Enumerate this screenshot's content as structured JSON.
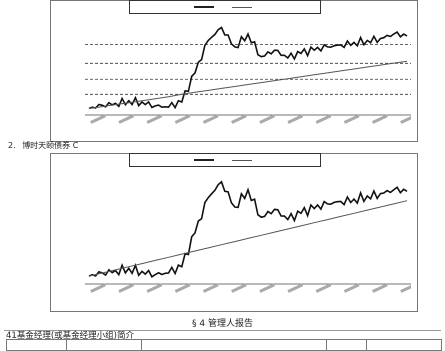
{
  "figure1": {
    "legend": [
      {
        "label": "",
        "style": "thick"
      },
      {
        "label": "",
        "style": "thin"
      }
    ],
    "y_ticks": [
      "",
      "",
      "",
      "",
      "",
      "",
      "",
      ""
    ],
    "chart_data": {
      "type": "line",
      "series": [
        {
          "values": [
            1.0,
            1.05,
            1.08,
            1.12,
            1.1,
            1.04,
            1.02,
            1.1,
            1.55,
            2.05,
            2.25,
            1.95,
            2.15,
            1.8,
            1.9,
            1.78,
            1.85,
            1.9,
            1.95,
            1.98,
            2.02,
            2.05,
            2.08,
            2.15,
            2.12
          ]
        },
        {
          "values": [
            1.0,
            1.03,
            1.06,
            1.09,
            1.12,
            1.15,
            1.18,
            1.22,
            1.25,
            1.28,
            1.31,
            1.34,
            1.37,
            1.4,
            1.43,
            1.46,
            1.49,
            1.52,
            1.55,
            1.58,
            1.61,
            1.64,
            1.67,
            1.7,
            1.73
          ]
        }
      ]
    }
  },
  "figure2": {
    "caption_number": "2.",
    "caption_text": "博时天颐债券 C",
    "legend": [
      {
        "label": "",
        "style": "thick"
      },
      {
        "label": "",
        "style": "thin"
      }
    ],
    "y_ticks": [
      "",
      "",
      "",
      "",
      "",
      "",
      ""
    ],
    "chart_data": {
      "type": "line",
      "series": [
        {
          "values": [
            1.0,
            1.04,
            1.07,
            1.1,
            1.06,
            1.02,
            1.04,
            1.12,
            1.55,
            2.0,
            2.2,
            1.88,
            2.1,
            1.75,
            1.85,
            1.72,
            1.8,
            1.86,
            1.92,
            1.95,
            1.98,
            2.02,
            2.05,
            2.1,
            2.08
          ]
        },
        {
          "values": [
            1.0,
            1.04,
            1.08,
            1.12,
            1.16,
            1.2,
            1.24,
            1.28,
            1.32,
            1.36,
            1.4,
            1.44,
            1.48,
            1.52,
            1.56,
            1.6,
            1.64,
            1.68,
            1.72,
            1.76,
            1.8,
            1.84,
            1.88,
            1.92,
            1.96
          ]
        }
      ]
    }
  },
  "section": {
    "title": "§ 4 管理人报告",
    "subsection": "41基金经理(或基金经理小组)简介"
  },
  "table": {
    "header": [
      "",
      "",
      "",
      "",
      ""
    ]
  }
}
